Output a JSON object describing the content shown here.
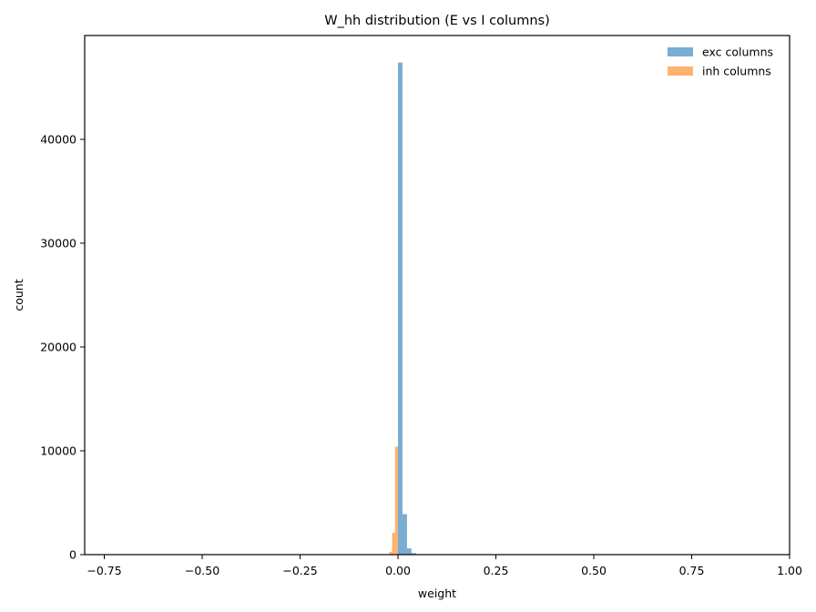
{
  "chart_data": {
    "type": "bar",
    "title": "W_hh distribution (E vs I columns)",
    "xlabel": "weight",
    "ylabel": "count",
    "xlim": [
      -0.8,
      1.0
    ],
    "ylim": [
      0,
      50000
    ],
    "x_ticks": [
      -0.75,
      -0.5,
      -0.25,
      0.0,
      0.25,
      0.5,
      0.75,
      1.0
    ],
    "x_tick_labels": [
      "−0.75",
      "−0.50",
      "−0.25",
      "0.00",
      "0.25",
      "0.50",
      "0.75",
      "1.00"
    ],
    "y_ticks": [
      0,
      10000,
      20000,
      30000,
      40000
    ],
    "y_tick_labels": [
      "0",
      "10000",
      "20000",
      "30000",
      "40000"
    ],
    "grid": false,
    "legend_position": "top-right",
    "series": [
      {
        "name": "exc columns",
        "color": "#1f77b4",
        "opacity": 0.6,
        "bins": [
          {
            "x0": 0.0,
            "x1": 0.0115,
            "count": 47400
          },
          {
            "x0": 0.0115,
            "x1": 0.023,
            "count": 3900
          },
          {
            "x0": 0.023,
            "x1": 0.0345,
            "count": 600
          },
          {
            "x0": 0.0345,
            "x1": 0.046,
            "count": 150
          },
          {
            "x0": 0.046,
            "x1": 0.0575,
            "count": 40
          }
        ]
      },
      {
        "name": "inh columns",
        "color": "#ff7f0e",
        "opacity": 0.6,
        "bins": [
          {
            "x0": -0.03,
            "x1": -0.0225,
            "count": 40
          },
          {
            "x0": -0.0225,
            "x1": -0.015,
            "count": 250
          },
          {
            "x0": -0.015,
            "x1": -0.0075,
            "count": 2100
          },
          {
            "x0": -0.0075,
            "x1": 0.0,
            "count": 10400
          }
        ]
      }
    ]
  }
}
